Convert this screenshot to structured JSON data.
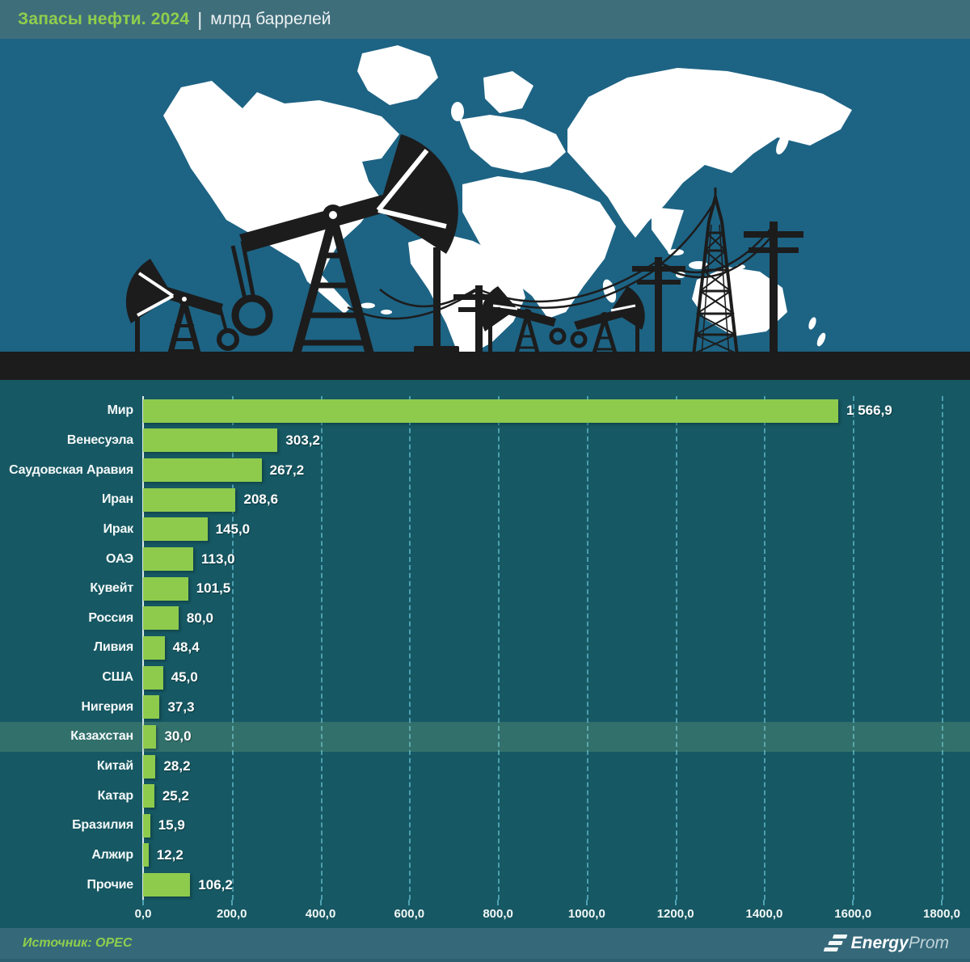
{
  "header": {
    "title_green": "Запасы нефти. 2024",
    "separator": "|",
    "title_rest": "млрд баррелей"
  },
  "illustration": {
    "icons": [
      "world-map",
      "oil-pumpjack",
      "power-line-pole",
      "transmission-tower"
    ],
    "background_color": "#1d6384",
    "map_color": "#ffffff",
    "silhouette_color": "#1c1c1c"
  },
  "chart_data": {
    "type": "bar",
    "orientation": "horizontal",
    "title": "Запасы нефти. 2024 | млрд баррелей",
    "xlabel": "млрд баррелей",
    "ylabel": "",
    "categories": [
      "Мир",
      "Венесуэла",
      "Саудовская Аравия",
      "Иран",
      "Ирак",
      "ОАЭ",
      "Кувейт",
      "Россия",
      "Ливия",
      "США",
      "Нигерия",
      "Казахстан",
      "Китай",
      "Катар",
      "Бразилия",
      "Алжир",
      "Прочие"
    ],
    "values": [
      1566.9,
      303.2,
      267.2,
      208.6,
      145.0,
      113.0,
      101.5,
      80.0,
      48.4,
      45.0,
      37.3,
      30.0,
      28.2,
      25.2,
      15.9,
      12.2,
      106.2
    ],
    "value_labels": [
      "1 566,9",
      "303,2",
      "267,2",
      "208,6",
      "145,0",
      "113,0",
      "101,5",
      "80,0",
      "48,4",
      "45,0",
      "37,3",
      "30,0",
      "28,2",
      "25,2",
      "15,9",
      "12,2",
      "106,2"
    ],
    "highlighted_category": "Казахстан",
    "xlim": [
      0,
      1800
    ],
    "x_ticks": [
      0,
      200,
      400,
      600,
      800,
      1000,
      1200,
      1400,
      1600,
      1800
    ],
    "x_tick_labels": [
      "0,0",
      "200,0",
      "400,0",
      "600,0",
      "800,0",
      "1000,0",
      "1200,0",
      "1400,0",
      "1600,0",
      "1800,0"
    ],
    "grid": "vertical-dashed",
    "legend": "none",
    "bar_color": "#8ecb4d",
    "background_color": "#165863",
    "source": "OPEC"
  },
  "footer": {
    "source": "Источник: OPEC",
    "logo_bold": "Energy",
    "logo_light": "Prom"
  }
}
